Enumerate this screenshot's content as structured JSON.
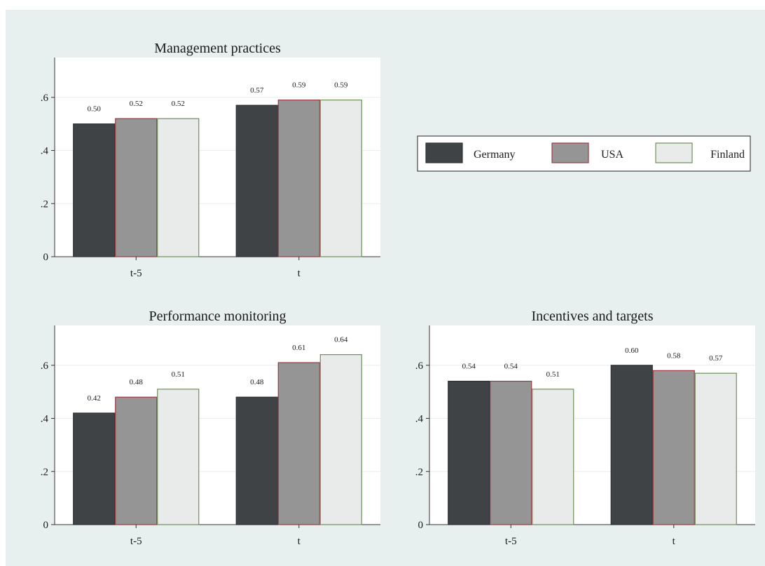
{
  "series_colors": {
    "Germany": {
      "fill": "#3f4346",
      "stroke": "#2e3133"
    },
    "USA": {
      "fill": "#959595",
      "stroke": "#9b3b45"
    },
    "Finland": {
      "fill": "#e9ebea",
      "stroke": "#6f8f5a"
    }
  },
  "legend": {
    "position": "right",
    "entries": [
      "Germany",
      "USA",
      "Finland"
    ]
  },
  "chart_data": [
    {
      "type": "bar",
      "title": "Management practices",
      "categories": [
        "t-5",
        "t"
      ],
      "ylim": [
        0,
        0.75
      ],
      "yticks": [
        0,
        0.2,
        0.4,
        0.6
      ],
      "ytick_labels": [
        "0",
        ".2",
        ".4",
        ".6"
      ],
      "grid": true,
      "series": [
        {
          "name": "Germany",
          "values": [
            0.5,
            0.57
          ],
          "labels": [
            "0.50",
            "0.57"
          ]
        },
        {
          "name": "USA",
          "values": [
            0.52,
            0.59
          ],
          "labels": [
            "0.52",
            "0.59"
          ]
        },
        {
          "name": "Finland",
          "values": [
            0.52,
            0.59
          ],
          "labels": [
            "0.52",
            "0.59"
          ]
        }
      ]
    },
    {
      "type": "bar",
      "title": "Performance monitoring",
      "categories": [
        "t-5",
        "t"
      ],
      "ylim": [
        0,
        0.75
      ],
      "yticks": [
        0,
        0.2,
        0.4,
        0.6
      ],
      "ytick_labels": [
        "0",
        ".2",
        ".4",
        ".6"
      ],
      "grid": true,
      "series": [
        {
          "name": "Germany",
          "values": [
            0.42,
            0.48
          ],
          "labels": [
            "0.42",
            "0.48"
          ]
        },
        {
          "name": "USA",
          "values": [
            0.48,
            0.61
          ],
          "labels": [
            "0.48",
            "0.61"
          ]
        },
        {
          "name": "Finland",
          "values": [
            0.51,
            0.64
          ],
          "labels": [
            "0.51",
            "0.64"
          ]
        }
      ]
    },
    {
      "type": "bar",
      "title": "Incentives and targets",
      "categories": [
        "t-5",
        "t"
      ],
      "ylim": [
        0,
        0.75
      ],
      "yticks": [
        0,
        0.2,
        0.4,
        0.6
      ],
      "ytick_labels": [
        "0",
        ".2",
        ".4",
        ".6"
      ],
      "grid": true,
      "series": [
        {
          "name": "Germany",
          "values": [
            0.54,
            0.6
          ],
          "labels": [
            "0.54",
            "0.60"
          ]
        },
        {
          "name": "USA",
          "values": [
            0.54,
            0.58
          ],
          "labels": [
            "0.54",
            "0.58"
          ]
        },
        {
          "name": "Finland",
          "values": [
            0.51,
            0.57
          ],
          "labels": [
            "0.51",
            "0.57"
          ]
        }
      ]
    }
  ]
}
